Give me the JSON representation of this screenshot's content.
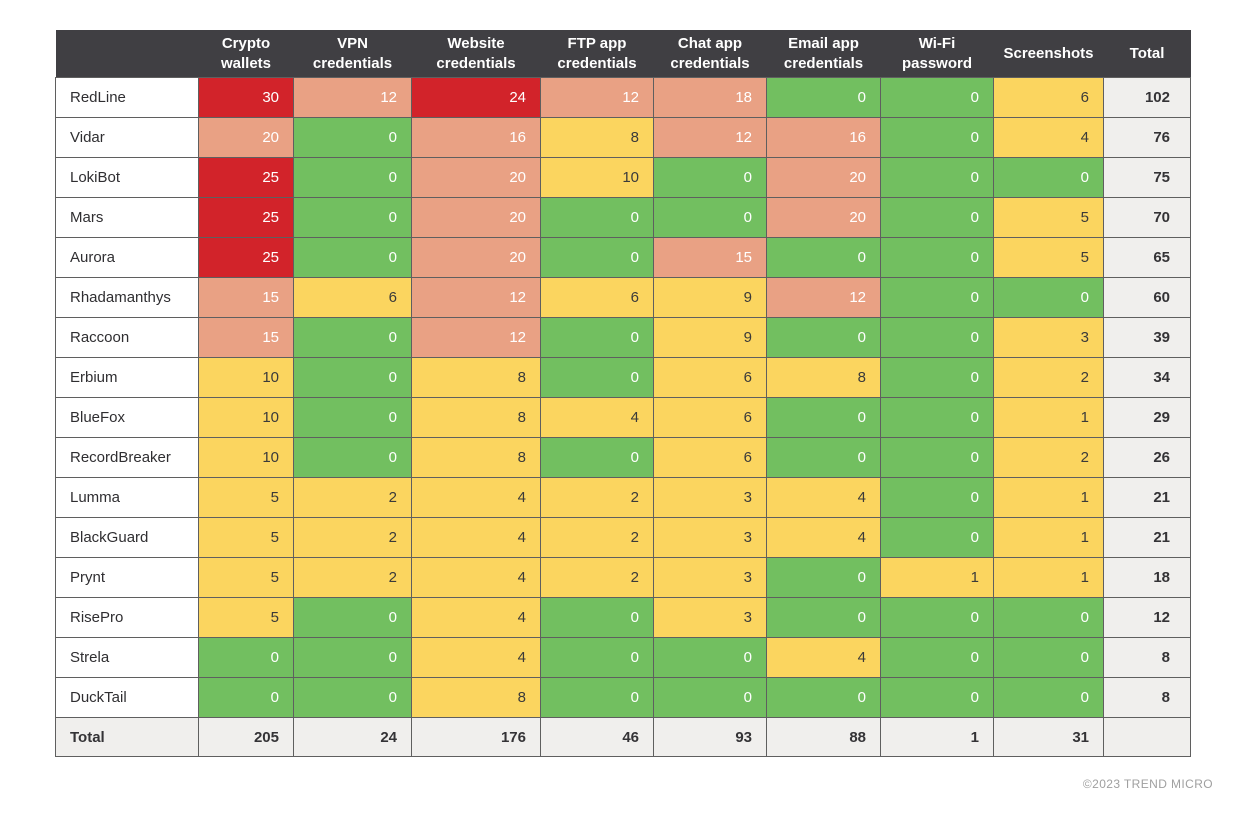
{
  "palette": {
    "green": "#72bf60",
    "yellow": "#fbd55f",
    "salmon": "#e9a184",
    "red": "#d2232a",
    "header_bg": "#403f43",
    "muted_bg": "#f0efed"
  },
  "color_rule": {
    "zero": "green",
    "low_max": 10,
    "mid_max": 20,
    "high": "red"
  },
  "footer": {
    "copyright": "©2023 TREND MICRO"
  },
  "chart_data": {
    "type": "heatmap",
    "title": "",
    "columns": [
      "Crypto\nwallets",
      "VPN\ncredentials",
      "Website\ncredentials",
      "FTP app\ncredentials",
      "Chat app\ncredentials",
      "Email app\ncredentials",
      "Wi-Fi\npassword",
      "Screenshots",
      "Total"
    ],
    "rows": [
      {
        "name": "RedLine",
        "values": [
          30,
          12,
          24,
          12,
          18,
          0,
          0,
          6
        ],
        "total": 102
      },
      {
        "name": "Vidar",
        "values": [
          20,
          0,
          16,
          8,
          12,
          16,
          0,
          4
        ],
        "total": 76
      },
      {
        "name": "LokiBot",
        "values": [
          25,
          0,
          20,
          10,
          0,
          20,
          0,
          0
        ],
        "total": 75
      },
      {
        "name": "Mars",
        "values": [
          25,
          0,
          20,
          0,
          0,
          20,
          0,
          5
        ],
        "total": 70
      },
      {
        "name": "Aurora",
        "values": [
          25,
          0,
          20,
          0,
          15,
          0,
          0,
          5
        ],
        "total": 65
      },
      {
        "name": "Rhadamanthys",
        "values": [
          15,
          6,
          12,
          6,
          9,
          12,
          0,
          0
        ],
        "total": 60
      },
      {
        "name": "Raccoon",
        "values": [
          15,
          0,
          12,
          0,
          9,
          0,
          0,
          3
        ],
        "total": 39
      },
      {
        "name": "Erbium",
        "values": [
          10,
          0,
          8,
          0,
          6,
          8,
          0,
          2
        ],
        "total": 34
      },
      {
        "name": "BlueFox",
        "values": [
          10,
          0,
          8,
          4,
          6,
          0,
          0,
          1
        ],
        "total": 29
      },
      {
        "name": "RecordBreaker",
        "values": [
          10,
          0,
          8,
          0,
          6,
          0,
          0,
          2
        ],
        "total": 26
      },
      {
        "name": "Lumma",
        "values": [
          5,
          2,
          4,
          2,
          3,
          4,
          0,
          1
        ],
        "total": 21
      },
      {
        "name": "BlackGuard",
        "values": [
          5,
          2,
          4,
          2,
          3,
          4,
          0,
          1
        ],
        "total": 21
      },
      {
        "name": "Prynt",
        "values": [
          5,
          2,
          4,
          2,
          3,
          0,
          1,
          1
        ],
        "total": 18
      },
      {
        "name": "RisePro",
        "values": [
          5,
          0,
          4,
          0,
          3,
          0,
          0,
          0
        ],
        "total": 12
      },
      {
        "name": "Strela",
        "values": [
          0,
          0,
          4,
          0,
          0,
          4,
          0,
          0
        ],
        "total": 8
      },
      {
        "name": "DuckTail",
        "values": [
          0,
          0,
          8,
          0,
          0,
          0,
          0,
          0
        ],
        "total": 8
      }
    ],
    "total_row": {
      "label": "Total",
      "values": [
        205,
        24,
        176,
        46,
        93,
        88,
        1,
        31
      ],
      "total": ""
    },
    "legend_position": "none",
    "grid": true
  }
}
